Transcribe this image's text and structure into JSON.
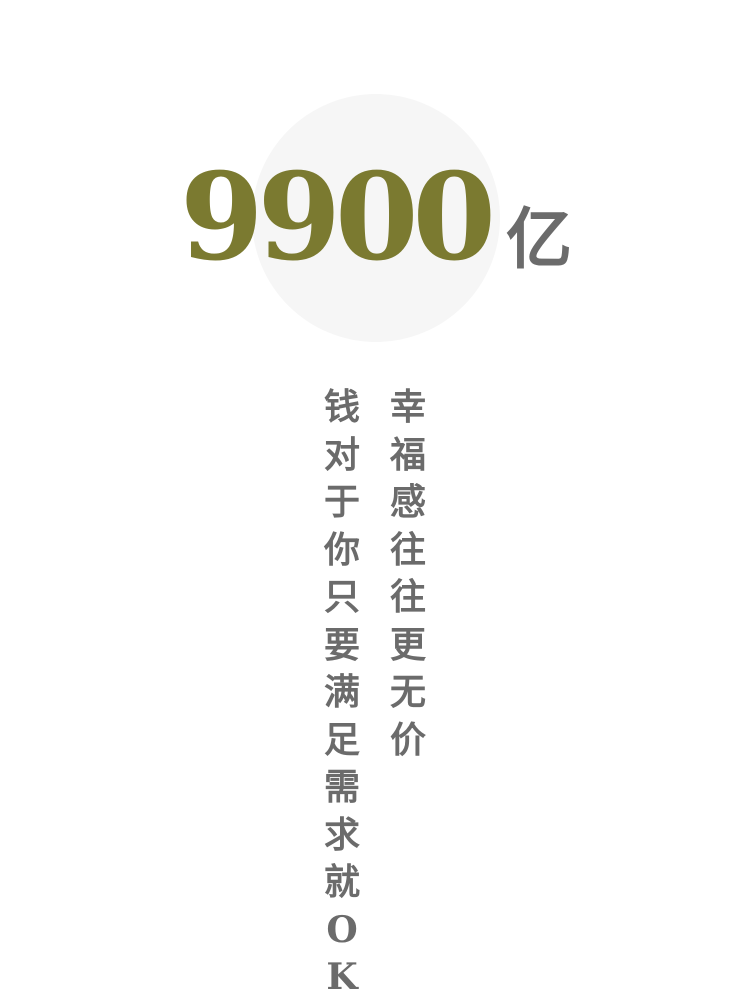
{
  "headline": {
    "number": "9900",
    "unit": "亿"
  },
  "poem": {
    "line_right": [
      "幸",
      "福",
      "感",
      "往",
      "往",
      "更",
      "无",
      "价"
    ],
    "line_left": [
      "钱",
      "对",
      "于",
      "你",
      "只",
      "要",
      "满",
      "足",
      "需",
      "求",
      "就",
      "O",
      "K"
    ]
  },
  "colors": {
    "number": "#7b7a30",
    "text": "#6b6b6b",
    "circle": "#f6f6f6"
  }
}
